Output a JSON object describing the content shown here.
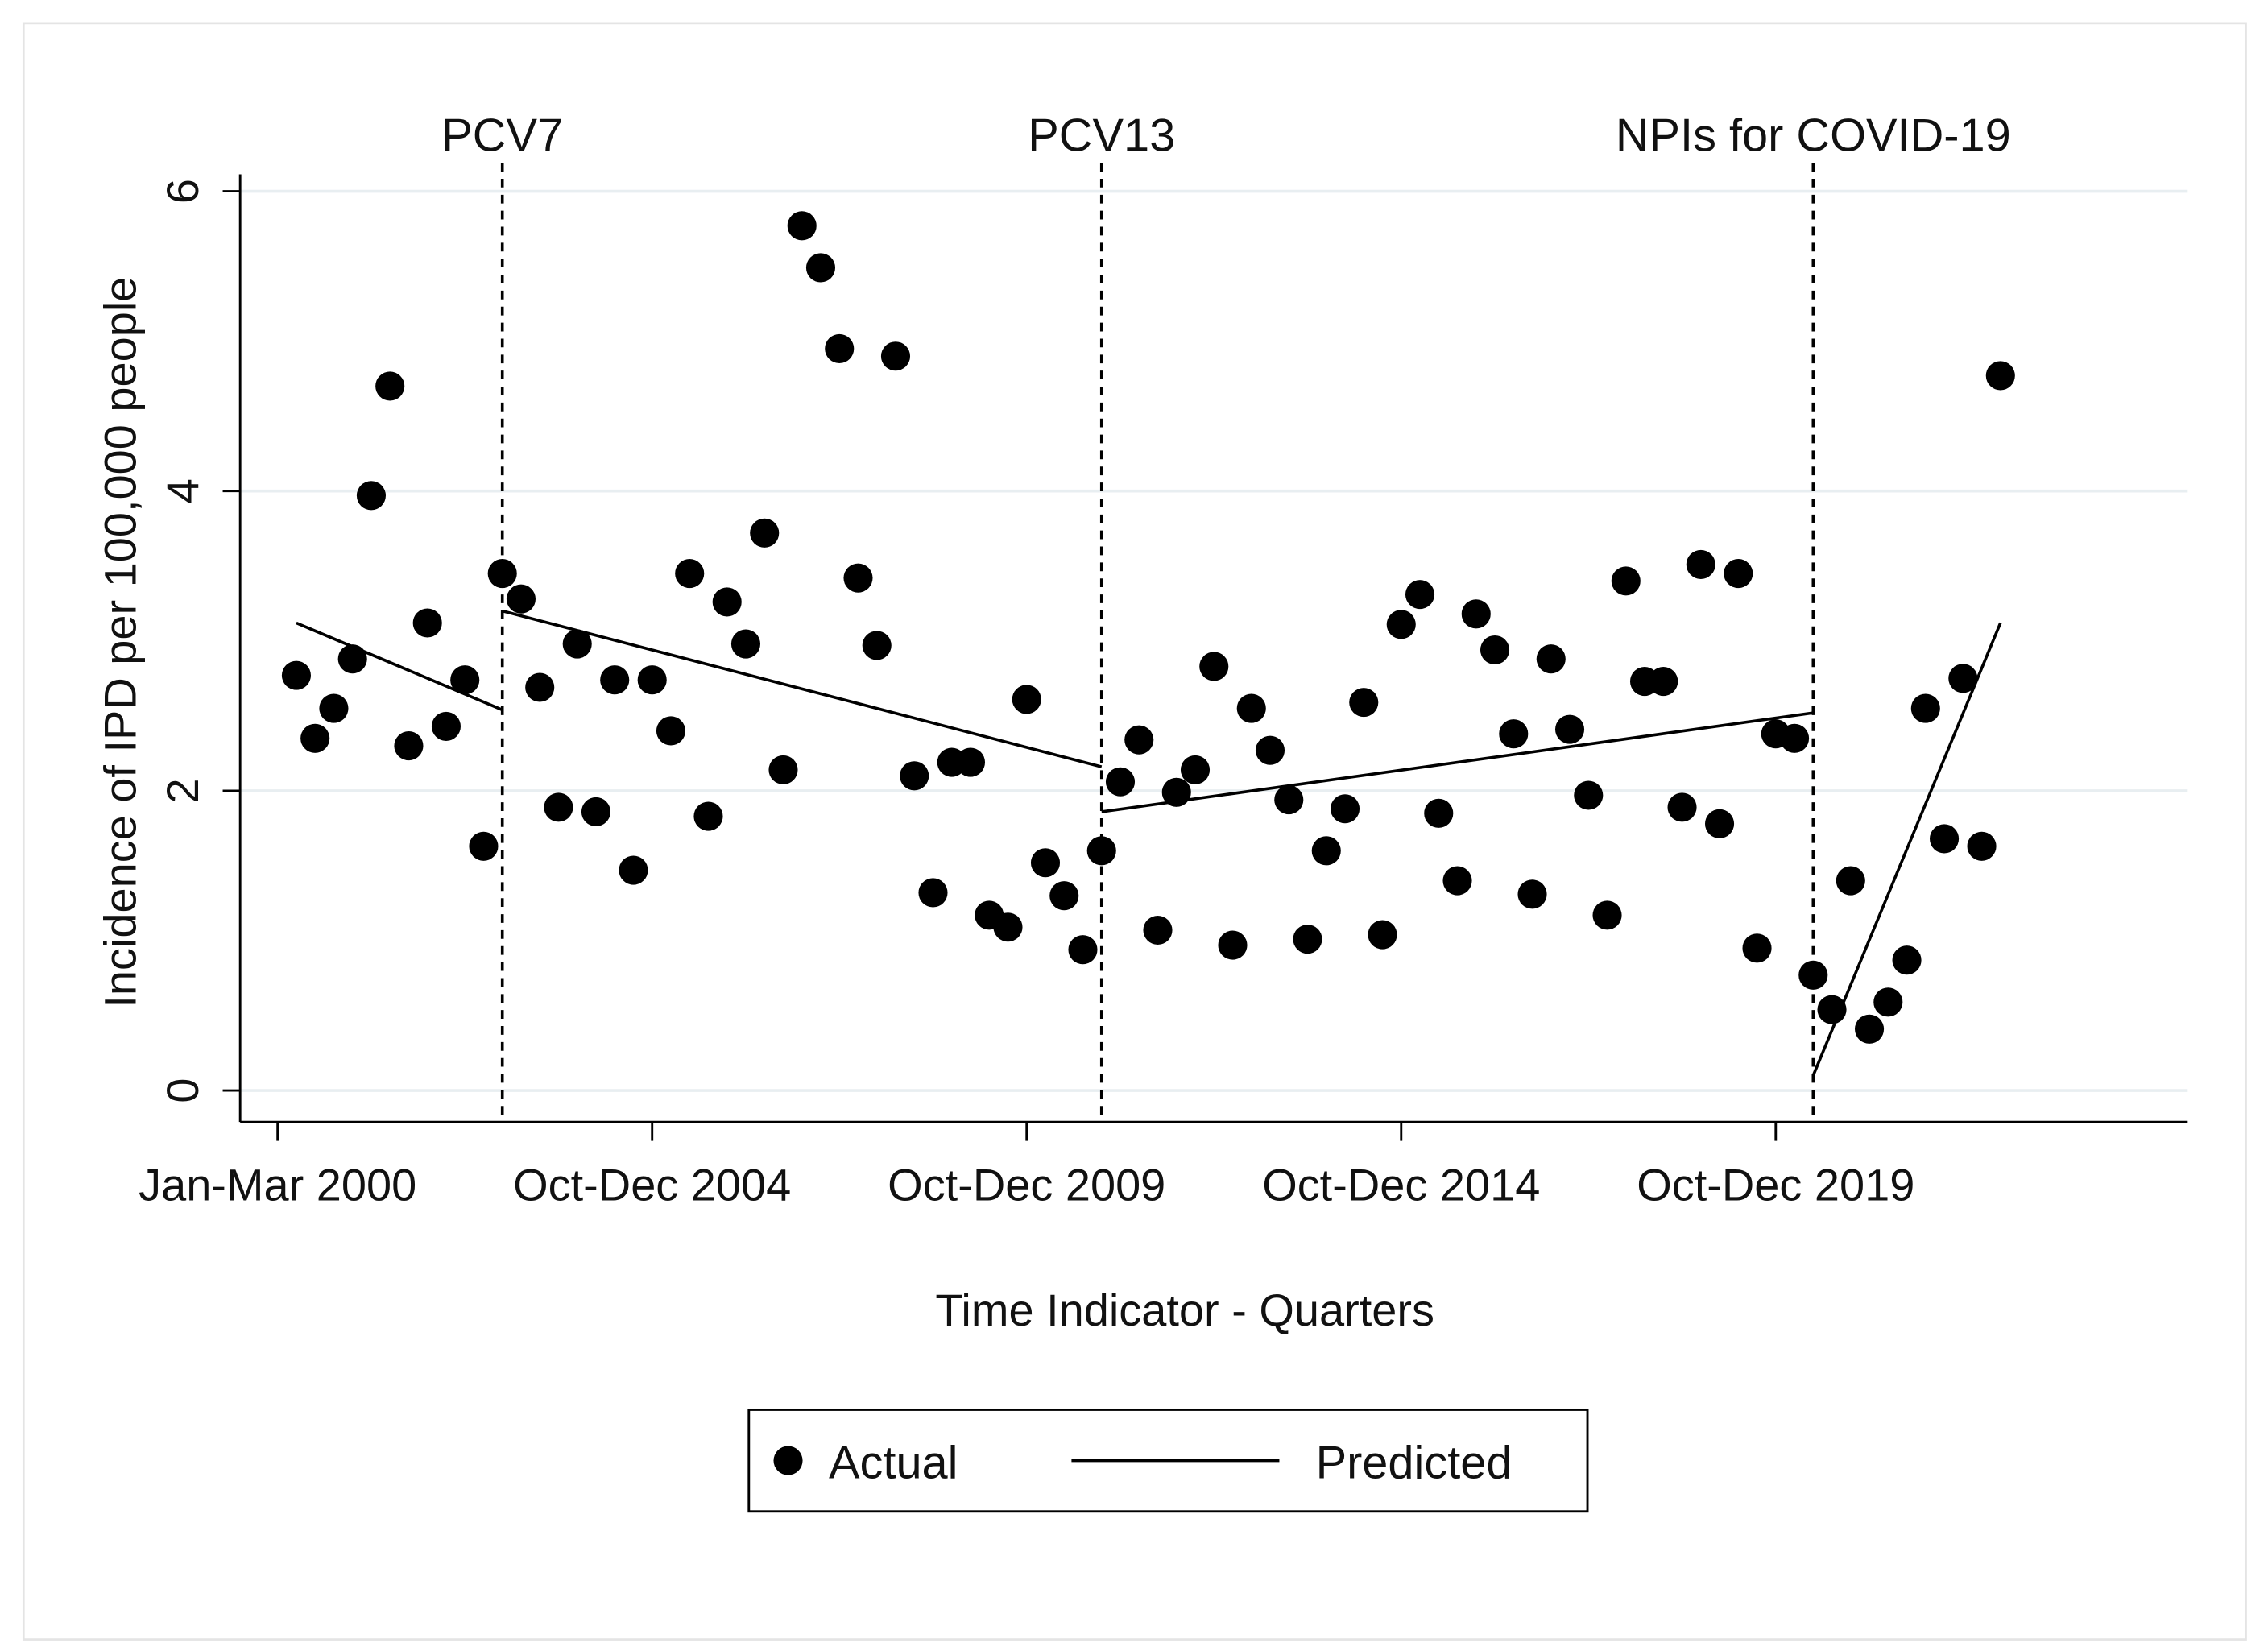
{
  "chart_data": {
    "type": "scatter",
    "x_label": "Time Indicator - Quarters",
    "y_label": "Incidence of IPD per 100,000 people",
    "xlim": [
      -2,
      102
    ],
    "ylim": [
      -0.2,
      6.2
    ],
    "xticks": [
      {
        "value": 0,
        "label": "Jan-Mar 2000"
      },
      {
        "value": 20,
        "label": "Oct-Dec 2004"
      },
      {
        "value": 40,
        "label": "Oct-Dec 2009"
      },
      {
        "value": 60,
        "label": "Oct-Dec 2014"
      },
      {
        "value": 80,
        "label": "Oct-Dec 2019"
      }
    ],
    "yticks": [
      0,
      2,
      4,
      6
    ],
    "grid": true,
    "legend": "bottom",
    "interventions": [
      {
        "label": "PCV7",
        "x": 12
      },
      {
        "label": "PCV13",
        "x": 44
      },
      {
        "label": "NPIs for COVID-19",
        "x": 82
      }
    ],
    "actual": {
      "name": "Actual",
      "color": "#000000",
      "x": [
        1,
        2,
        3,
        4,
        5,
        6,
        7,
        8,
        9,
        10,
        11,
        12,
        13,
        14,
        15,
        16,
        17,
        18,
        19,
        20,
        21,
        22,
        23,
        24,
        25,
        26,
        27,
        28,
        29,
        30,
        31,
        32,
        33,
        34,
        35,
        36,
        37,
        38,
        39,
        40,
        41,
        42,
        43,
        44,
        45,
        46,
        47,
        48,
        49,
        50,
        51,
        52,
        53,
        54,
        55,
        56,
        57,
        58,
        59,
        60,
        61,
        62,
        63,
        64,
        65,
        66,
        67,
        68,
        69,
        70,
        71,
        72,
        73,
        74,
        75,
        76,
        77,
        78,
        79,
        80,
        81,
        82,
        83,
        84,
        85,
        86,
        87,
        88,
        89,
        90,
        91,
        92
      ],
      "values": [
        2.77,
        2.35,
        2.55,
        2.88,
        3.97,
        4.7,
        2.3,
        3.12,
        2.43,
        2.74,
        1.63,
        3.45,
        3.28,
        2.69,
        1.89,
        2.98,
        1.86,
        2.74,
        1.47,
        2.74,
        2.4,
        3.45,
        1.83,
        3.26,
        2.98,
        3.72,
        2.14,
        5.77,
        5.49,
        4.95,
        3.42,
        2.97,
        4.9,
        2.1,
        1.32,
        2.19,
        2.19,
        1.17,
        1.09,
        2.61,
        1.52,
        1.3,
        0.94,
        1.6,
        2.06,
        2.34,
        1.07,
        1.99,
        2.14,
        2.83,
        0.97,
        2.55,
        2.27,
        1.94,
        1.01,
        1.6,
        1.88,
        2.59,
        1.04,
        3.11,
        3.31,
        1.85,
        1.4,
        3.18,
        2.94,
        2.38,
        1.31,
        2.88,
        2.41,
        1.97,
        1.17,
        3.4,
        2.73,
        2.73,
        1.89,
        3.51,
        1.78,
        3.45,
        0.95,
        2.38,
        2.35,
        0.77,
        0.54,
        1.4,
        0.41,
        0.59,
        0.87,
        2.55,
        1.68,
        2.75,
        1.63,
        4.77
      ]
    },
    "predicted": {
      "name": "Predicted",
      "color": "#000000",
      "segments": [
        {
          "x": [
            1,
            12
          ],
          "values": [
            3.12,
            2.54
          ]
        },
        {
          "x": [
            12,
            44
          ],
          "values": [
            3.2,
            2.16
          ]
        },
        {
          "x": [
            44,
            82
          ],
          "values": [
            1.86,
            2.52
          ]
        },
        {
          "x": [
            82,
            92
          ],
          "values": [
            0.1,
            3.12
          ]
        }
      ]
    }
  }
}
